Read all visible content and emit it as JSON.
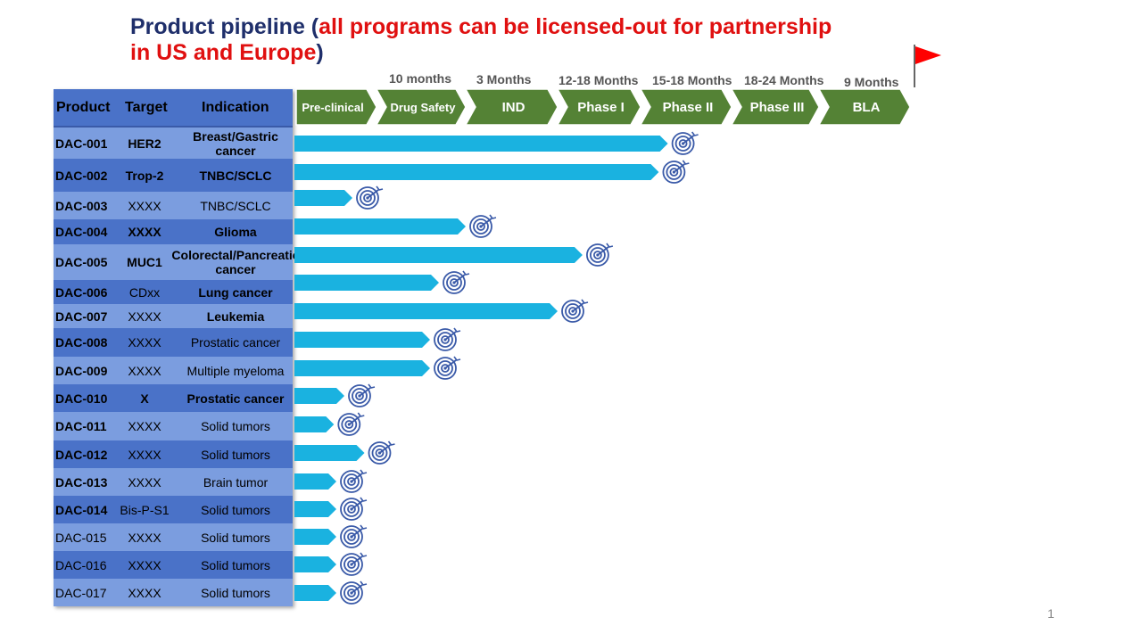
{
  "title": {
    "part1": "Product pipeline (",
    "part2": "all programs can be licensed-out for partnership in US and Europe",
    "part3": ")"
  },
  "table": {
    "headers": [
      "Product",
      "Target",
      "Indication"
    ]
  },
  "chart_data": {
    "type": "bar",
    "orientation": "horizontal",
    "title": "Product pipeline (all programs can be licensed-out for partnership in US and Europe)",
    "stages": [
      "Pre-clinical",
      "Drug Safety",
      "IND",
      "Phase I",
      "Phase II",
      "Phase III",
      "BLA"
    ],
    "durations": [
      "10 months",
      "3 Months",
      "12-18 Months",
      "15-18 Months",
      "18-24 Months",
      "9 Months"
    ],
    "progress_unit": "stages completed (0 = start of Pre-clinical)",
    "products": [
      {
        "product": "DAC-001",
        "target": "HER2",
        "indication": "Breast/Gastric cancer",
        "progress": 4.3
      },
      {
        "product": "DAC-002",
        "target": "Trop-2",
        "indication": "TNBC/SCLC",
        "progress": 4.2
      },
      {
        "product": "DAC-003",
        "target": "XXXX",
        "indication": "TNBC/SCLC",
        "progress": 0.7
      },
      {
        "product": "DAC-004",
        "target": "XXXX",
        "indication": "Glioma",
        "progress": 2.0
      },
      {
        "product": "DAC-005",
        "target": "MUC1",
        "indication": "Colorectal/Pancreatic cancer",
        "progress": 3.3
      },
      {
        "product": "DAC-006",
        "target": "CDxx",
        "indication": "Lung cancer",
        "progress": 1.7
      },
      {
        "product": "DAC-007",
        "target": "XXXX",
        "indication": "Leukemia",
        "progress": 3.0
      },
      {
        "product": "DAC-008",
        "target": "XXXX",
        "indication": "Prostatic cancer",
        "progress": 1.6
      },
      {
        "product": "DAC-009",
        "target": "XXXX",
        "indication": "Multiple myeloma",
        "progress": 1.6
      },
      {
        "product": "DAC-010",
        "target": "X",
        "indication": "Prostatic cancer",
        "progress": 0.6
      },
      {
        "product": "DAC-011",
        "target": "XXXX",
        "indication": "Solid tumors",
        "progress": 0.47
      },
      {
        "product": "DAC-012",
        "target": "XXXX",
        "indication": "Solid tumors",
        "progress": 0.85
      },
      {
        "product": "DAC-013",
        "target": "XXXX",
        "indication": "Brain tumor",
        "progress": 0.5
      },
      {
        "product": "DAC-014",
        "target": "Bis-P-S1",
        "indication": "Solid tumors",
        "progress": 0.5
      },
      {
        "product": "DAC-015",
        "target": "XXXX",
        "indication": "Solid tumors",
        "progress": 0.5
      },
      {
        "product": "DAC-016",
        "target": "XXXX",
        "indication": "Solid tumors",
        "progress": 0.5
      },
      {
        "product": "DAC-017",
        "target": "XXXX",
        "indication": "Solid tumors",
        "progress": 0.5
      }
    ]
  },
  "colors": {
    "bar": "#1ab2e0",
    "arrow": "#548235",
    "flag": "#ff0000",
    "target_icon": "#3a5aa8"
  },
  "page_number": "1"
}
